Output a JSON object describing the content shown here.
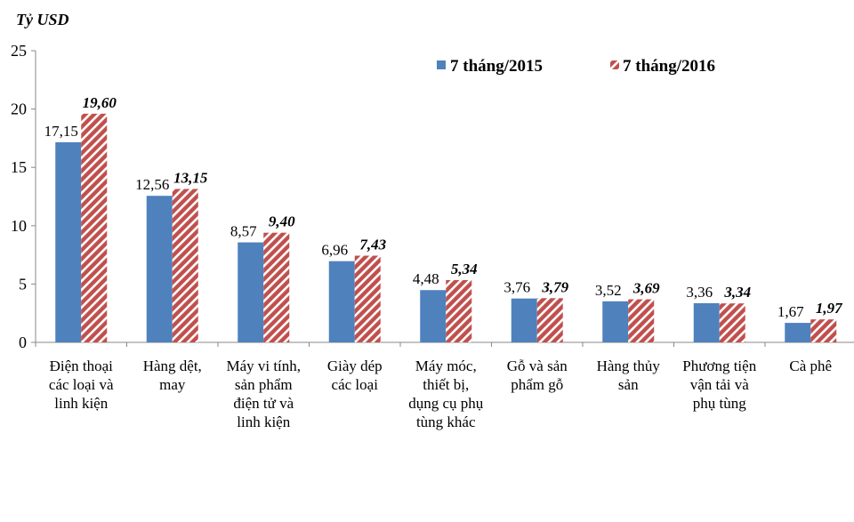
{
  "chart_data": {
    "type": "bar",
    "unit_label": "Tỷ USD",
    "ylim": [
      0,
      25
    ],
    "yticks": [
      "0",
      "5",
      "10",
      "15",
      "20",
      "25"
    ],
    "grid": false,
    "legend_position": "top-right",
    "categories": [
      [
        "Điện thoại",
        "các loại và",
        "linh kiện"
      ],
      [
        "Hàng dệt,",
        "may"
      ],
      [
        "Máy vi tính,",
        "sản phẩm",
        "điện tử và",
        "linh kiện"
      ],
      [
        "Giày dép",
        "các loại"
      ],
      [
        "Máy móc,",
        "thiết bị,",
        "dụng cụ phụ",
        "tùng khác"
      ],
      [
        "Gỗ và sản",
        "phẩm gỗ"
      ],
      [
        "Hàng thủy",
        "sản"
      ],
      [
        "Phương tiện",
        "vận tải và",
        "phụ tùng"
      ],
      [
        "Cà phê"
      ]
    ],
    "series": [
      {
        "name": "7 tháng/2015",
        "color": "#4F81BD",
        "pattern": "solid",
        "values": [
          17.15,
          12.56,
          8.57,
          6.96,
          4.48,
          3.76,
          3.52,
          3.36,
          1.67
        ],
        "labels": [
          "17,15",
          "12,56",
          "8,57",
          "6,96",
          "4,48",
          "3,76",
          "3,52",
          "3,36",
          "1,67"
        ]
      },
      {
        "name": "7 tháng/2016",
        "color": "#C0504D",
        "pattern": "diagonal-hatch",
        "values": [
          19.6,
          13.15,
          9.4,
          7.43,
          5.34,
          3.79,
          3.69,
          3.34,
          1.97
        ],
        "labels": [
          "19,60",
          "13,15",
          "9,40",
          "7,43",
          "5,34",
          "3,79",
          "3,69",
          "3,34",
          "1,97"
        ]
      }
    ]
  }
}
